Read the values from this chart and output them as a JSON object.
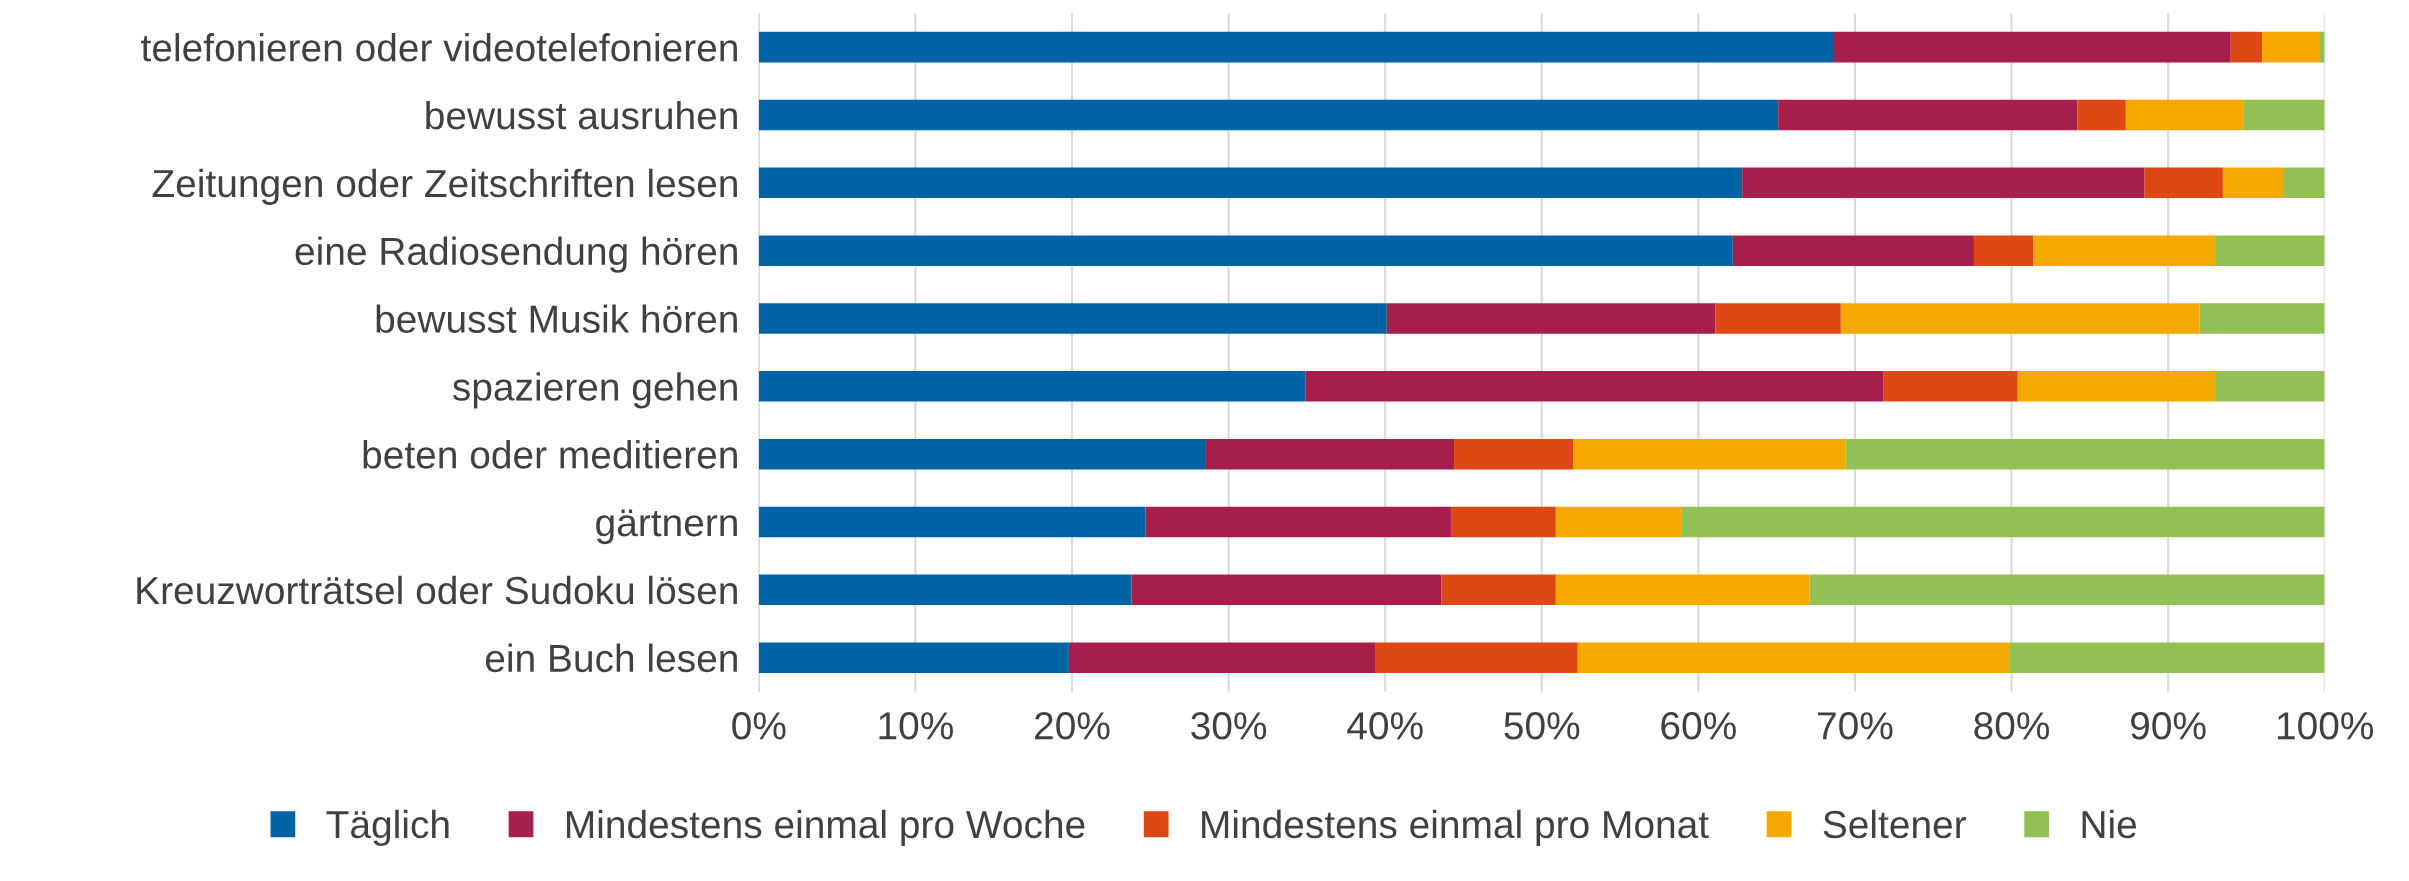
{
  "chart_data": {
    "type": "bar",
    "orientation": "horizontal",
    "stacked": true,
    "categories": [
      "telefonieren oder videotelefonieren",
      "bewusst ausruhen",
      "Zeitungen oder Zeitschriften lesen",
      "eine Radiosendung hören",
      "bewusst Musik hören",
      "spazieren gehen",
      "beten oder meditieren",
      "gärtnern",
      "Kreuzworträtsel oder Sudoku lösen",
      "ein Buch lesen"
    ],
    "series": [
      {
        "name": "Täglich",
        "color": "#0063a6",
        "values": [
          68.6,
          65.1,
          62.8,
          62.2,
          40.1,
          34.9,
          28.5,
          24.7,
          23.8,
          19.8
        ]
      },
      {
        "name": "Mindestens einmal pro Woche",
        "color": "#a61e4a",
        "values": [
          25.4,
          19.1,
          25.7,
          15.4,
          21.0,
          36.9,
          15.9,
          19.5,
          19.8,
          19.6
        ]
      },
      {
        "name": "Mindestens einmal pro Monat",
        "color": "#dd4814",
        "values": [
          2.0,
          3.1,
          5.0,
          3.8,
          8.0,
          8.6,
          7.6,
          6.7,
          7.3,
          12.9
        ]
      },
      {
        "name": "Seltener",
        "color": "#f5a800",
        "values": [
          3.7,
          7.5,
          3.9,
          11.6,
          22.9,
          12.6,
          17.4,
          8.0,
          16.2,
          27.6
        ]
      },
      {
        "name": "Nie",
        "color": "#93c054",
        "values": [
          0.3,
          5.2,
          2.6,
          7.0,
          8.0,
          7.0,
          30.6,
          41.1,
          32.9,
          20.1
        ]
      }
    ],
    "xlim": [
      0,
      100
    ],
    "xticks": [
      {
        "value": 0,
        "label": "0%"
      },
      {
        "value": 10,
        "label": "10%"
      },
      {
        "value": 20,
        "label": "20%"
      },
      {
        "value": 30,
        "label": "30%"
      },
      {
        "value": 40,
        "label": "40%"
      },
      {
        "value": 50,
        "label": "50%"
      },
      {
        "value": 60,
        "label": "60%"
      },
      {
        "value": 70,
        "label": "70%"
      },
      {
        "value": 80,
        "label": "80%"
      },
      {
        "value": 90,
        "label": "90%"
      },
      {
        "value": 100,
        "label": "100%"
      }
    ],
    "grid": "x",
    "legend": "bottom"
  }
}
